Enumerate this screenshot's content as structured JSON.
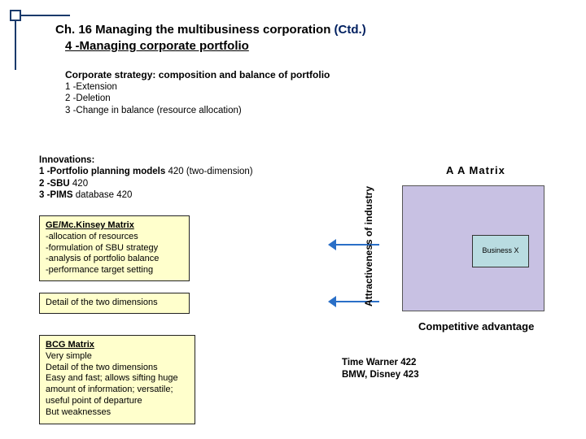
{
  "header": {
    "chapter": "Ch. 16 Managing the multibusiness corporation",
    "ctd": "(Ctd.)",
    "subtitle": "4 -Managing corporate portfolio"
  },
  "strategy": {
    "heading": "Corporate strategy: composition and balance of portfolio",
    "items": [
      "1 -Extension",
      "2 -Deletion",
      "3 -Change in balance (resource allocation)"
    ]
  },
  "innovations": {
    "label": "Innovations:",
    "l1a": "1 -Portfolio planning models",
    "l1b": " 420 (two-dimension)",
    "l2a": "2 -SBU",
    "l2b": " 420",
    "l3a": "3 -PIMS",
    "l3b": " database 420"
  },
  "ge": {
    "title": "GE/Mc.Kinsey Matrix",
    "lines": [
      "-allocation of resources",
      "-formulation of SBU strategy",
      "-analysis of portfolio balance",
      "-performance target setting"
    ]
  },
  "detail": {
    "text": "Detail of the two dimensions"
  },
  "bcg": {
    "title": "BCG Matrix",
    "lines": [
      "Very simple",
      "Detail of the two dimensions",
      "Easy and fast; allows sifting huge amount of information; versatile; useful point of departure",
      "But weaknesses"
    ]
  },
  "matrix": {
    "title": "A A  Matrix",
    "y_label": "Attractiveness of industry",
    "x_label": "Competitive advantage",
    "cell_label": "Business X",
    "box_bg": "#c8c1e3",
    "cell_bg": "#b9dce1"
  },
  "refs": {
    "l1": "Time Warner 422",
    "l2": "BMW, Disney 423"
  }
}
